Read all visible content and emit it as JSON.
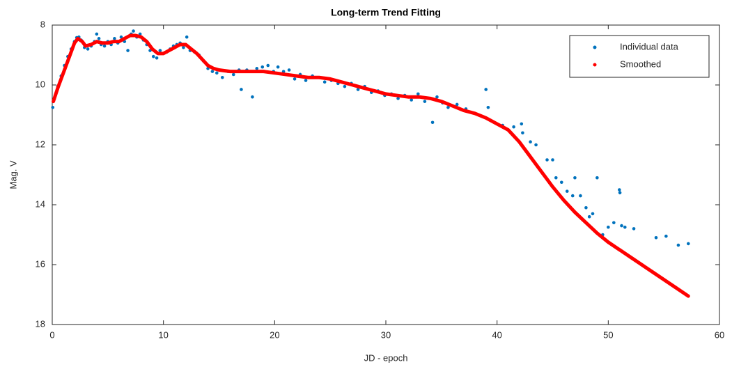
{
  "chart_data": {
    "type": "scatter",
    "title": "Long-term Trend Fitting",
    "xlabel": "JD - epoch",
    "ylabel": "Mag. V",
    "xlim": [
      0,
      60
    ],
    "ylim": [
      18,
      8
    ],
    "xticks": [
      0,
      10,
      20,
      30,
      40,
      50,
      60
    ],
    "yticks": [
      8,
      10,
      12,
      14,
      16,
      18
    ],
    "legend": "upper right",
    "series": [
      {
        "name": "Individual data",
        "color": "#0072bd",
        "x": [
          0.05,
          0.2,
          0.5,
          0.8,
          1.1,
          1.4,
          1.7,
          2.0,
          2.2,
          2.4,
          2.6,
          2.9,
          3.2,
          3.5,
          3.8,
          4.0,
          4.2,
          4.4,
          4.7,
          5.0,
          5.3,
          5.6,
          5.9,
          6.2,
          6.5,
          6.8,
          7.1,
          7.3,
          7.6,
          7.9,
          8.2,
          8.5,
          8.8,
          9.1,
          9.4,
          9.7,
          10.0,
          10.3,
          10.6,
          10.9,
          11.2,
          11.5,
          11.8,
          12.1,
          12.4,
          12.8,
          13.2,
          13.6,
          14.0,
          14.4,
          14.8,
          15.3,
          15.8,
          16.3,
          16.8,
          17.0,
          17.5,
          18.0,
          18.4,
          18.9,
          19.4,
          19.9,
          20.3,
          20.8,
          21.3,
          21.8,
          22.3,
          22.8,
          23.4,
          24.0,
          24.5,
          25.1,
          25.7,
          26.3,
          26.9,
          27.5,
          28.1,
          28.7,
          29.3,
          29.9,
          30.5,
          31.1,
          31.7,
          32.3,
          32.9,
          33.5,
          34.2,
          34.6,
          35.1,
          35.6,
          36.4,
          37.2,
          38.0,
          39.0,
          39.2,
          40.5,
          41.5,
          42.2,
          42.3,
          43.0,
          43.5,
          44.5,
          45.0,
          45.3,
          45.8,
          46.3,
          46.8,
          47.0,
          47.5,
          48.0,
          48.3,
          48.6,
          49.0,
          49.5,
          50.0,
          50.5,
          51.0,
          51.05,
          51.2,
          51.5,
          52.3,
          54.3,
          55.2,
          56.3,
          57.2
        ],
        "values": [
          10.75,
          10.45,
          10.05,
          9.7,
          9.35,
          9.05,
          8.8,
          8.55,
          8.42,
          8.4,
          8.5,
          8.75,
          8.8,
          8.7,
          8.55,
          8.3,
          8.45,
          8.65,
          8.7,
          8.55,
          8.65,
          8.45,
          8.6,
          8.4,
          8.55,
          8.85,
          8.3,
          8.2,
          8.4,
          8.3,
          8.5,
          8.65,
          8.85,
          9.05,
          9.1,
          8.85,
          8.95,
          8.9,
          8.8,
          8.7,
          8.65,
          8.6,
          8.75,
          8.4,
          8.85,
          8.9,
          9.0,
          9.2,
          9.45,
          9.55,
          9.6,
          9.75,
          9.55,
          9.65,
          9.5,
          10.15,
          9.5,
          10.4,
          9.45,
          9.4,
          9.35,
          9.55,
          9.4,
          9.55,
          9.5,
          9.8,
          9.65,
          9.85,
          9.7,
          9.75,
          9.9,
          9.85,
          9.95,
          10.05,
          9.95,
          10.15,
          10.05,
          10.25,
          10.2,
          10.35,
          10.3,
          10.45,
          10.35,
          10.5,
          10.3,
          10.55,
          11.25,
          10.4,
          10.6,
          10.75,
          10.65,
          10.8,
          10.95,
          10.15,
          10.75,
          11.35,
          11.4,
          11.3,
          11.6,
          11.9,
          12.0,
          12.5,
          12.5,
          13.1,
          13.25,
          13.55,
          13.7,
          13.1,
          13.7,
          14.1,
          14.4,
          14.3,
          13.1,
          15.0,
          14.75,
          14.6,
          13.5,
          13.6,
          14.7,
          14.75,
          14.8,
          15.1,
          15.05,
          15.35,
          15.3
        ]
      },
      {
        "name": "Smoothed",
        "color": "#ff0000",
        "connected": true,
        "x": [
          0.1,
          0.5,
          1,
          1.5,
          2,
          2.3,
          2.7,
          3,
          3.5,
          4,
          4.5,
          5,
          5.5,
          6,
          6.5,
          7,
          7.5,
          8,
          8.5,
          9,
          9.5,
          10,
          10.5,
          11,
          11.5,
          12,
          12.5,
          13,
          13.5,
          14,
          14.5,
          15,
          16,
          17,
          18,
          19,
          20,
          21,
          22,
          23,
          24,
          25,
          26,
          27,
          28,
          29,
          30,
          31,
          32,
          33,
          34,
          35,
          36,
          37,
          38,
          39,
          40,
          41,
          42,
          43,
          44,
          45,
          46,
          47,
          48,
          49,
          50,
          51,
          52,
          53,
          54,
          55,
          56,
          57.2
        ],
        "values": [
          10.55,
          10.1,
          9.6,
          9.1,
          8.6,
          8.45,
          8.55,
          8.7,
          8.65,
          8.55,
          8.6,
          8.6,
          8.55,
          8.55,
          8.45,
          8.35,
          8.35,
          8.4,
          8.55,
          8.8,
          8.95,
          8.95,
          8.85,
          8.75,
          8.65,
          8.65,
          8.8,
          8.95,
          9.15,
          9.35,
          9.45,
          9.5,
          9.55,
          9.55,
          9.55,
          9.55,
          9.6,
          9.65,
          9.7,
          9.75,
          9.75,
          9.8,
          9.9,
          10.0,
          10.1,
          10.2,
          10.3,
          10.35,
          10.4,
          10.4,
          10.45,
          10.55,
          10.7,
          10.85,
          10.95,
          11.1,
          11.3,
          11.5,
          11.9,
          12.4,
          12.9,
          13.4,
          13.85,
          14.25,
          14.6,
          14.95,
          15.25,
          15.5,
          15.75,
          16.0,
          16.25,
          16.5,
          16.75,
          17.05
        ]
      }
    ]
  }
}
